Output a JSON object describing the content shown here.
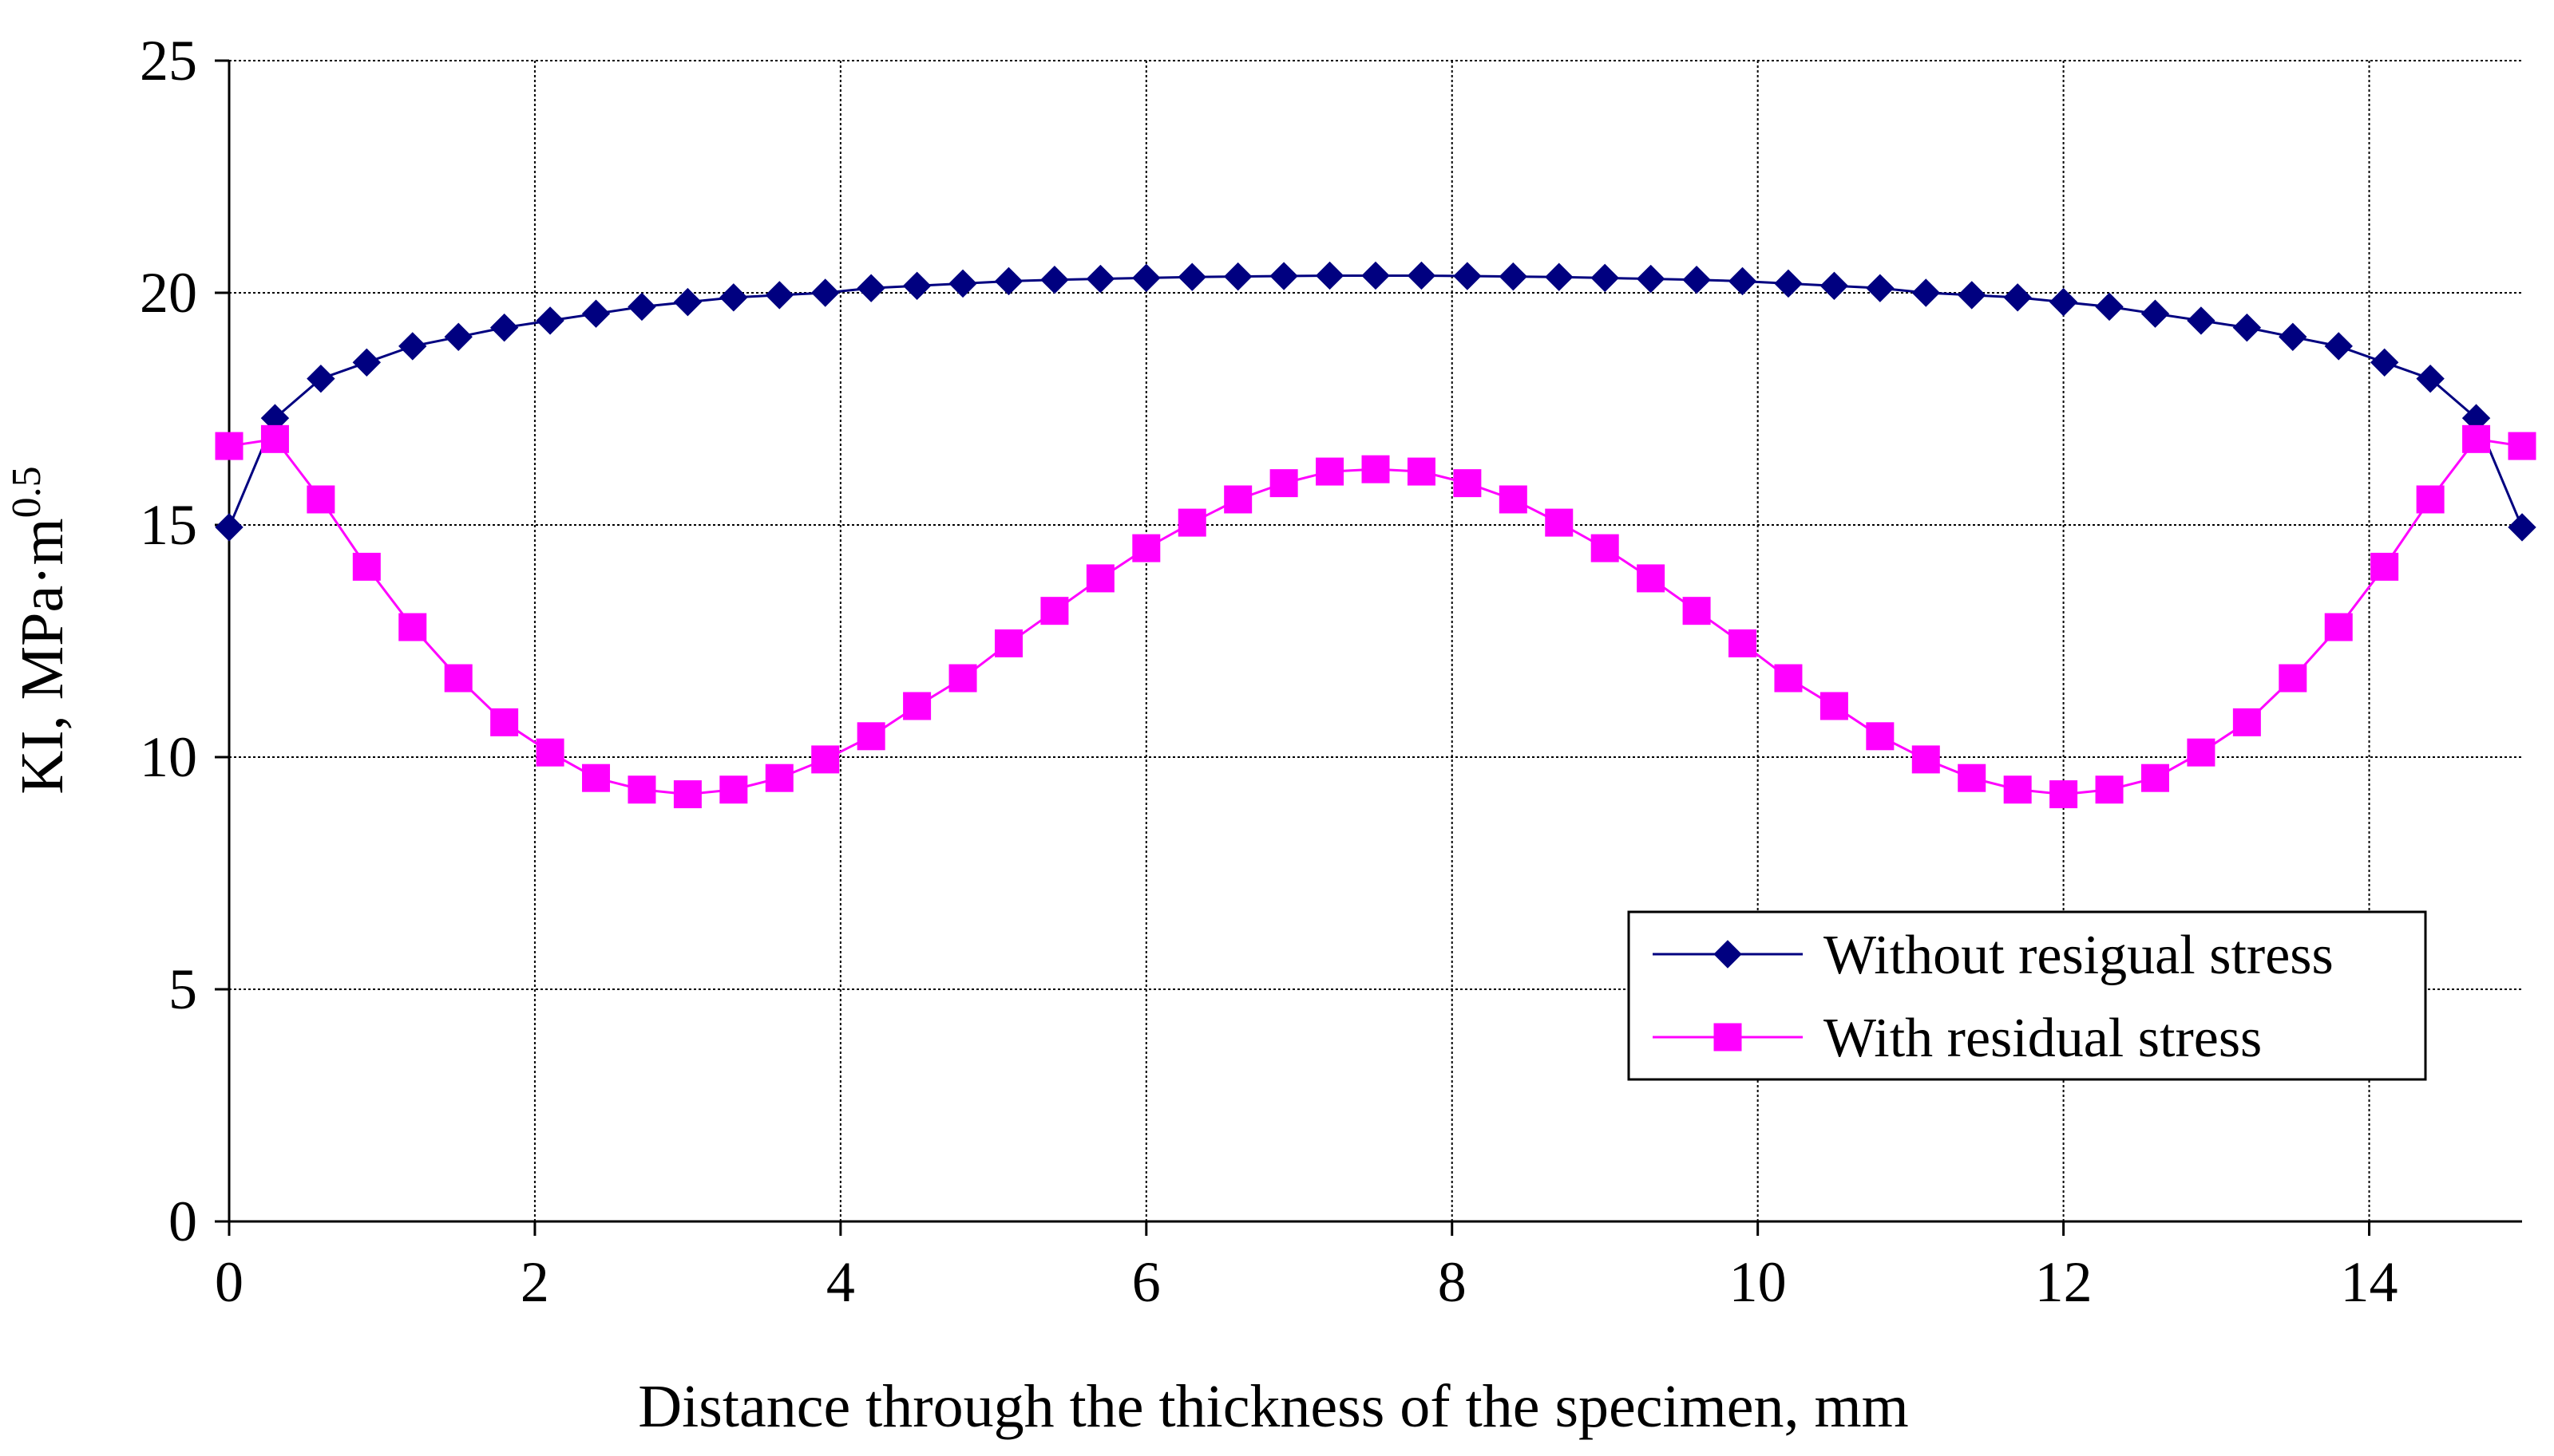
{
  "chart_data": {
    "type": "line",
    "title": "",
    "xlabel": "Distance through the thickness of the specimen, mm",
    "ylabel_main": "KI, MPa·m",
    "ylabel_sup": "0.5",
    "xlim": [
      0,
      15
    ],
    "ylim": [
      0,
      25
    ],
    "xticks": [
      0,
      2,
      4,
      6,
      8,
      10,
      12,
      14
    ],
    "yticks": [
      0,
      5,
      10,
      15,
      20,
      25
    ],
    "grid": true,
    "legend_position": "lower-right",
    "x": [
      0,
      0.3,
      0.6,
      0.9,
      1.2,
      1.5,
      1.8,
      2.1,
      2.4,
      2.7,
      3.0,
      3.3,
      3.6,
      3.9,
      4.2,
      4.5,
      4.8,
      5.1,
      5.4,
      5.7,
      6.0,
      6.3,
      6.6,
      6.9,
      7.2,
      7.5,
      7.8,
      8.1,
      8.4,
      8.7,
      9.0,
      9.3,
      9.6,
      9.9,
      10.2,
      10.5,
      10.8,
      11.1,
      11.4,
      11.7,
      12.0,
      12.3,
      12.6,
      12.9,
      13.2,
      13.5,
      13.8,
      14.1,
      14.4,
      14.7,
      15.0
    ],
    "series": [
      {
        "name": "Without resigual stress",
        "color": "#000080",
        "marker": "diamond",
        "values": [
          14.95,
          17.3,
          18.15,
          18.5,
          18.85,
          19.05,
          19.25,
          19.4,
          19.55,
          19.7,
          19.8,
          19.9,
          19.95,
          20.0,
          20.1,
          20.15,
          20.2,
          20.25,
          20.28,
          20.3,
          20.32,
          20.34,
          20.35,
          20.36,
          20.37,
          20.37,
          20.37,
          20.36,
          20.35,
          20.34,
          20.32,
          20.3,
          20.28,
          20.25,
          20.2,
          20.15,
          20.1,
          20.0,
          19.95,
          19.9,
          19.8,
          19.7,
          19.55,
          19.4,
          19.25,
          19.05,
          18.85,
          18.5,
          18.15,
          17.3,
          14.95
        ]
      },
      {
        "name": "With residual stress",
        "color": "#FF00FF",
        "marker": "square",
        "values": [
          16.7,
          16.85,
          15.55,
          14.1,
          12.8,
          11.7,
          10.75,
          10.1,
          9.55,
          9.3,
          9.2,
          9.3,
          9.55,
          9.95,
          10.45,
          11.1,
          11.7,
          12.45,
          13.15,
          13.85,
          14.5,
          15.05,
          15.55,
          15.9,
          16.15,
          16.2,
          16.15,
          15.9,
          15.55,
          15.05,
          14.5,
          13.85,
          13.15,
          12.45,
          11.7,
          11.1,
          10.45,
          9.95,
          9.55,
          9.3,
          9.2,
          9.3,
          9.55,
          10.1,
          10.75,
          11.7,
          12.8,
          14.1,
          15.55,
          16.85,
          16.7
        ]
      }
    ]
  }
}
